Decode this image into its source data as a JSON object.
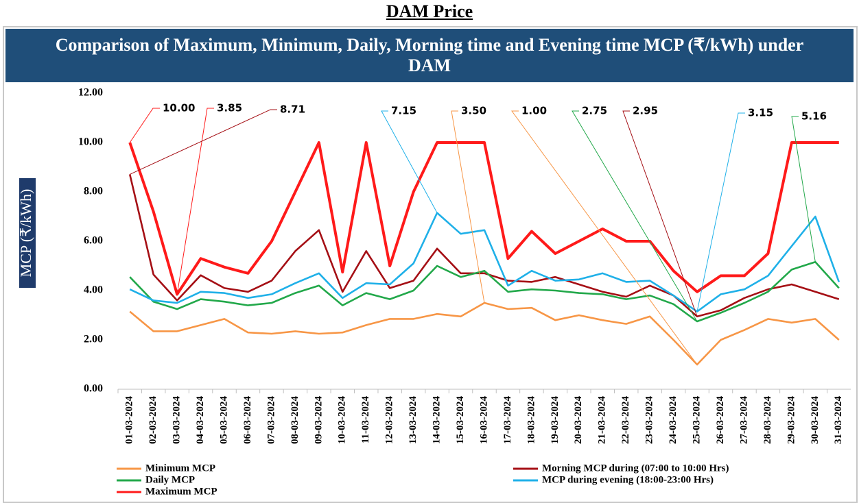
{
  "heading": "DAM Price",
  "chart_data": {
    "type": "line",
    "title": "Comparison of Maximum, Minimum, Daily, Morning time and  Evening time MCP (₹/kWh) under DAM",
    "y_label": "MCP (₹/kWh)",
    "ylim": [
      0,
      12
    ],
    "yticks": [
      {
        "value": 0,
        "label": "0.00"
      },
      {
        "value": 2,
        "label": "2.00"
      },
      {
        "value": 4,
        "label": "4.00"
      },
      {
        "value": 6,
        "label": "6.00"
      },
      {
        "value": 8,
        "label": "8.00"
      },
      {
        "value": 10,
        "label": "10.00"
      },
      {
        "value": 12,
        "label": "12.00"
      }
    ],
    "categories": [
      "01-03-2024",
      "02-03-2024",
      "03-03-2024",
      "04-03-2024",
      "05-03-2024",
      "06-03-2024",
      "07-03-2024",
      "08-03-2024",
      "09-03-2024",
      "10-03-2024",
      "11-03-2024",
      "12-03-2024",
      "13-03-2024",
      "14-03-2024",
      "15-03-2024",
      "16-03-2024",
      "17-03-2024",
      "18-03-2024",
      "19-03-2024",
      "20-03-2024",
      "21-03-2024",
      "22-03-2024",
      "23-03-2024",
      "24-03-2024",
      "25-03-2024",
      "26-03-2024",
      "27-03-2024",
      "28-03-2024",
      "29-03-2024",
      "30-03-2024",
      "31-03-2024"
    ],
    "series": [
      {
        "name": "Minimum MCP",
        "color": "#f79646",
        "values": [
          3.15,
          2.35,
          2.35,
          2.6,
          2.85,
          2.3,
          2.25,
          2.35,
          2.25,
          2.3,
          2.6,
          2.85,
          2.85,
          3.05,
          2.95,
          3.5,
          3.25,
          3.3,
          2.8,
          3.0,
          2.8,
          2.65,
          2.95,
          2.0,
          1.0,
          2.0,
          2.4,
          2.85,
          2.7,
          2.85,
          2.0
        ]
      },
      {
        "name": "Morning MCP  during (07:00 to 10:00 Hrs)",
        "color": "#a50f15",
        "values": [
          8.71,
          4.65,
          3.6,
          4.62,
          4.1,
          3.95,
          4.4,
          5.6,
          6.45,
          3.95,
          5.6,
          4.1,
          4.4,
          5.7,
          4.7,
          4.7,
          4.4,
          4.35,
          4.55,
          4.25,
          3.95,
          3.75,
          4.2,
          3.8,
          2.95,
          3.2,
          3.7,
          4.05,
          4.25,
          3.95,
          3.65
        ]
      },
      {
        "name": "Daily MCP",
        "color": "#22a84a",
        "values": [
          4.55,
          3.55,
          3.25,
          3.65,
          3.55,
          3.4,
          3.5,
          3.9,
          4.2,
          3.4,
          3.9,
          3.65,
          4.0,
          5.0,
          4.55,
          4.8,
          3.95,
          4.05,
          4.0,
          3.9,
          3.85,
          3.65,
          3.8,
          3.45,
          2.75,
          3.1,
          3.5,
          3.95,
          4.85,
          5.16,
          4.1
        ]
      },
      {
        "name": "MCP  during evening (18:00-23:00 Hrs)",
        "color": "#1fb0e8",
        "values": [
          4.05,
          3.6,
          3.5,
          3.95,
          3.9,
          3.7,
          3.85,
          4.3,
          4.7,
          3.7,
          4.3,
          4.25,
          5.1,
          7.15,
          6.3,
          6.45,
          4.2,
          4.8,
          4.4,
          4.45,
          4.7,
          4.35,
          4.4,
          3.8,
          3.15,
          3.85,
          4.05,
          4.6,
          5.8,
          7.0,
          4.35
        ]
      },
      {
        "name": "Maximum MCP",
        "color": "#ff1a1a",
        "values": [
          10.0,
          7.2,
          3.85,
          5.3,
          4.95,
          4.7,
          6.0,
          8.0,
          10.0,
          4.75,
          10.0,
          5.0,
          8.0,
          10.0,
          10.0,
          10.0,
          5.3,
          6.4,
          5.5,
          6.0,
          6.5,
          6.0,
          6.0,
          4.8,
          3.95,
          4.6,
          4.6,
          5.5,
          10.0,
          10.0,
          10.0
        ]
      }
    ],
    "annotations": [
      "10.00",
      "3.85",
      "8.71",
      "7.15",
      "3.50",
      "1.00",
      "2.75",
      "2.95",
      "3.15",
      "5.16"
    ]
  }
}
